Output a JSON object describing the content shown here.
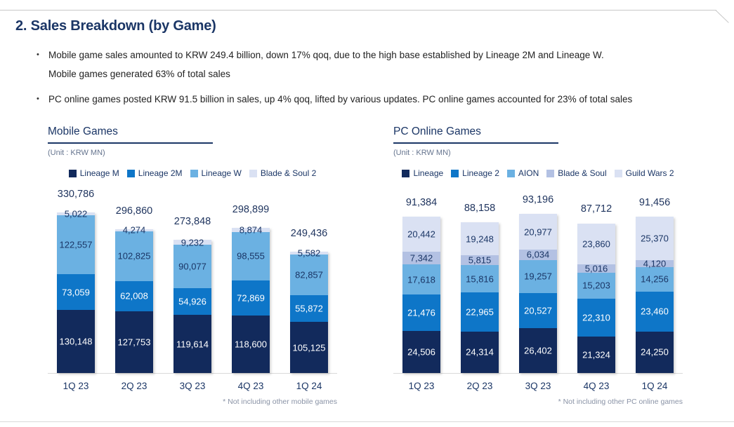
{
  "title": "2. Sales Breakdown (by Game)",
  "bullets": [
    {
      "lines": [
        "Mobile game sales amounted to KRW 249.4 billion, down 17% qoq, due to the high base established by Lineage 2M and Lineage W.",
        "Mobile games generated 63% of total sales"
      ]
    },
    {
      "lines": [
        "PC online games posted KRW 91.5 billion in sales, up 4% qoq, lifted by various updates. PC online games accounted for 23% of total sales"
      ]
    }
  ],
  "colors": {
    "navy": "#122a5c",
    "medium_blue": "#0e76c8",
    "light_blue": "#6bb1e2",
    "periwinkle": "#b3c1e3",
    "pale_blue": "#dae1f3",
    "heading_text": "#1b3666",
    "footnote_text": "#8a93a6"
  },
  "chart_data": [
    {
      "type": "bar",
      "stacked": true,
      "title": "Mobile Games",
      "unit_label": "(Unit : KRW MN)",
      "footnote": "* Not including other mobile games",
      "legend_position": "top",
      "categories": [
        "1Q 23",
        "2Q 23",
        "3Q 23",
        "4Q 23",
        "1Q 24"
      ],
      "series": [
        {
          "name": "Lineage M",
          "color": "#122a5c",
          "values": [
            130148,
            127753,
            119614,
            118600,
            105125
          ]
        },
        {
          "name": "Lineage 2M",
          "color": "#0e76c8",
          "values": [
            73059,
            62008,
            54926,
            72869,
            55872
          ]
        },
        {
          "name": "Lineage W",
          "color": "#6bb1e2",
          "values": [
            122557,
            102825,
            90077,
            98555,
            82857
          ]
        },
        {
          "name": "Blade & Soul 2",
          "color": "#dae1f3",
          "values": [
            5022,
            4274,
            9232,
            8874,
            5582
          ]
        }
      ],
      "totals": [
        330786,
        296860,
        273848,
        298899,
        249436
      ],
      "ylim": [
        0,
        340000
      ],
      "grid": false
    },
    {
      "type": "bar",
      "stacked": true,
      "title": "PC Online Games",
      "unit_label": "(Unit : KRW MN)",
      "footnote": "* Not including other PC online games",
      "legend_position": "top",
      "categories": [
        "1Q 23",
        "2Q 23",
        "3Q 23",
        "4Q 23",
        "1Q 24"
      ],
      "series": [
        {
          "name": "Lineage",
          "color": "#122a5c",
          "values": [
            24506,
            24314,
            26402,
            21324,
            24250
          ]
        },
        {
          "name": "Lineage 2",
          "color": "#0e76c8",
          "values": [
            21476,
            22965,
            20527,
            22310,
            23460
          ]
        },
        {
          "name": "AION",
          "color": "#6bb1e2",
          "values": [
            17618,
            15816,
            19257,
            15203,
            14256
          ]
        },
        {
          "name": "Blade & Soul",
          "color": "#b3c1e3",
          "values": [
            7342,
            5815,
            6034,
            5016,
            4120
          ]
        },
        {
          "name": "Guild Wars 2",
          "color": "#dae1f3",
          "values": [
            20442,
            19248,
            20977,
            23860,
            25370
          ]
        }
      ],
      "totals": [
        91384,
        88158,
        93196,
        87712,
        91456
      ],
      "ylim": [
        0,
        95000
      ],
      "grid": false
    }
  ]
}
